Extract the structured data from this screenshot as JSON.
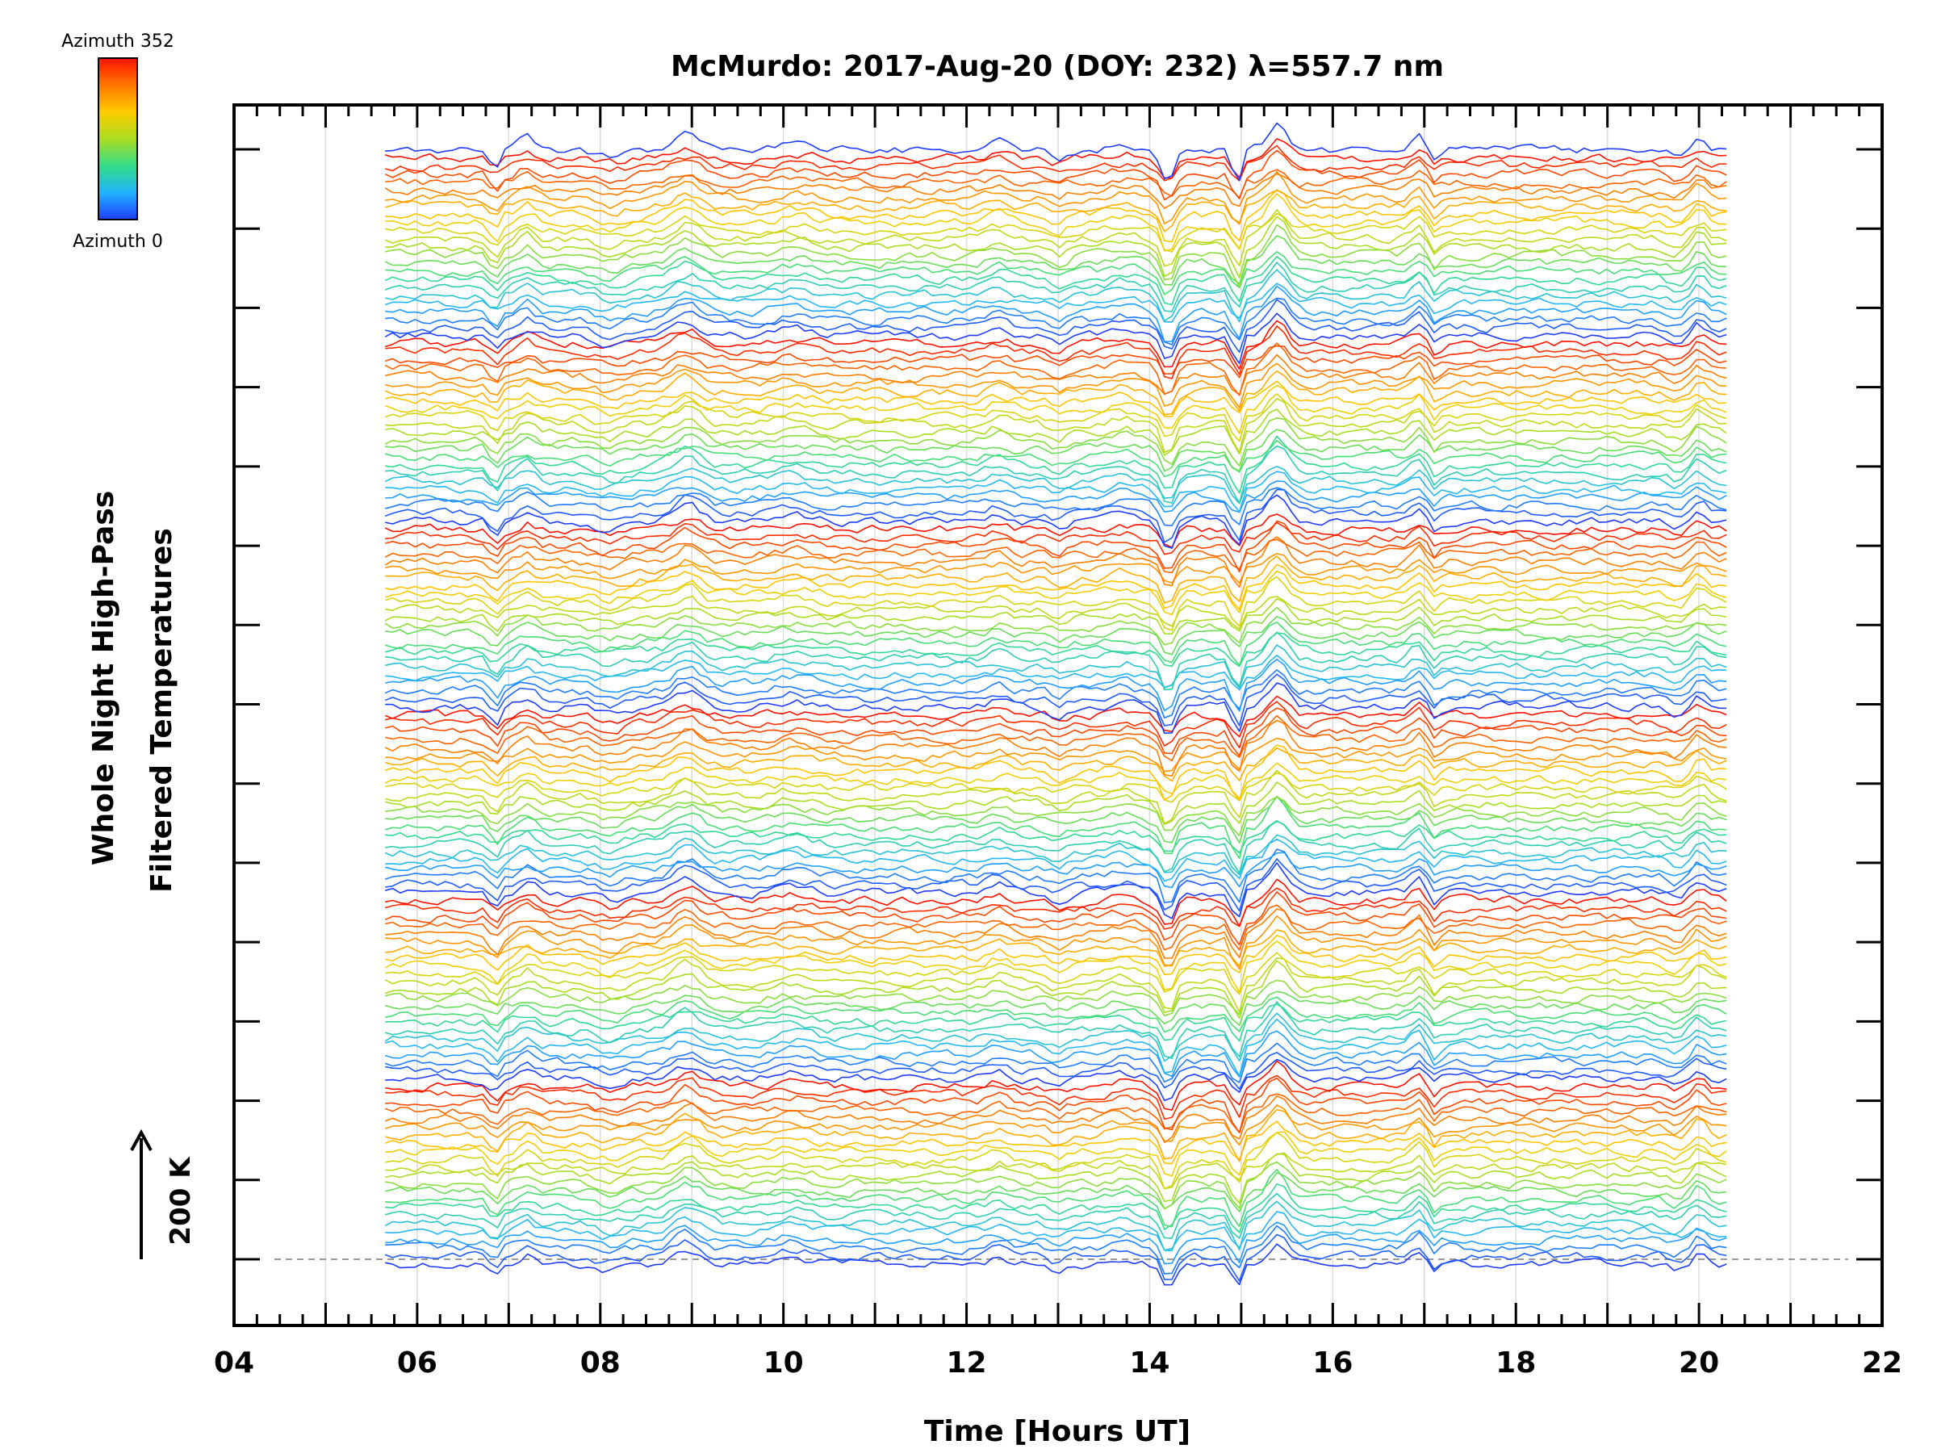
{
  "chart_data": {
    "type": "line",
    "title": "McMurdo: 2017-Aug-20 (DOY: 232) λ=557.7 nm",
    "xlabel": "Time [Hours UT]",
    "ylabel_line1": "Whole Night High-Pass",
    "ylabel_line2": "Filtered Temperatures",
    "scale_label": "200 K",
    "colorbar": {
      "label_top": "Azimuth 352",
      "label_bottom": "Azimuth 0",
      "stops": [
        "#1e3cff",
        "#22b4ff",
        "#33dd88",
        "#aadd22",
        "#ffcc00",
        "#ff7700",
        "#ff1100"
      ]
    },
    "xlim": [
      4,
      22
    ],
    "x_tick_labels": [
      "04",
      "06",
      "08",
      "10",
      "12",
      "14",
      "16",
      "18",
      "20",
      "22"
    ],
    "x_start": 5.65,
    "x_end": 20.3,
    "n_samples": 180,
    "n_series": 139,
    "series_per_cycle": 23,
    "y_tick_count": 15,
    "grid": "vertical dotted at each hour",
    "colors": {
      "frame": "#000000",
      "grid": "#dcdcdc",
      "baseline": "#9a9a9a"
    }
  }
}
